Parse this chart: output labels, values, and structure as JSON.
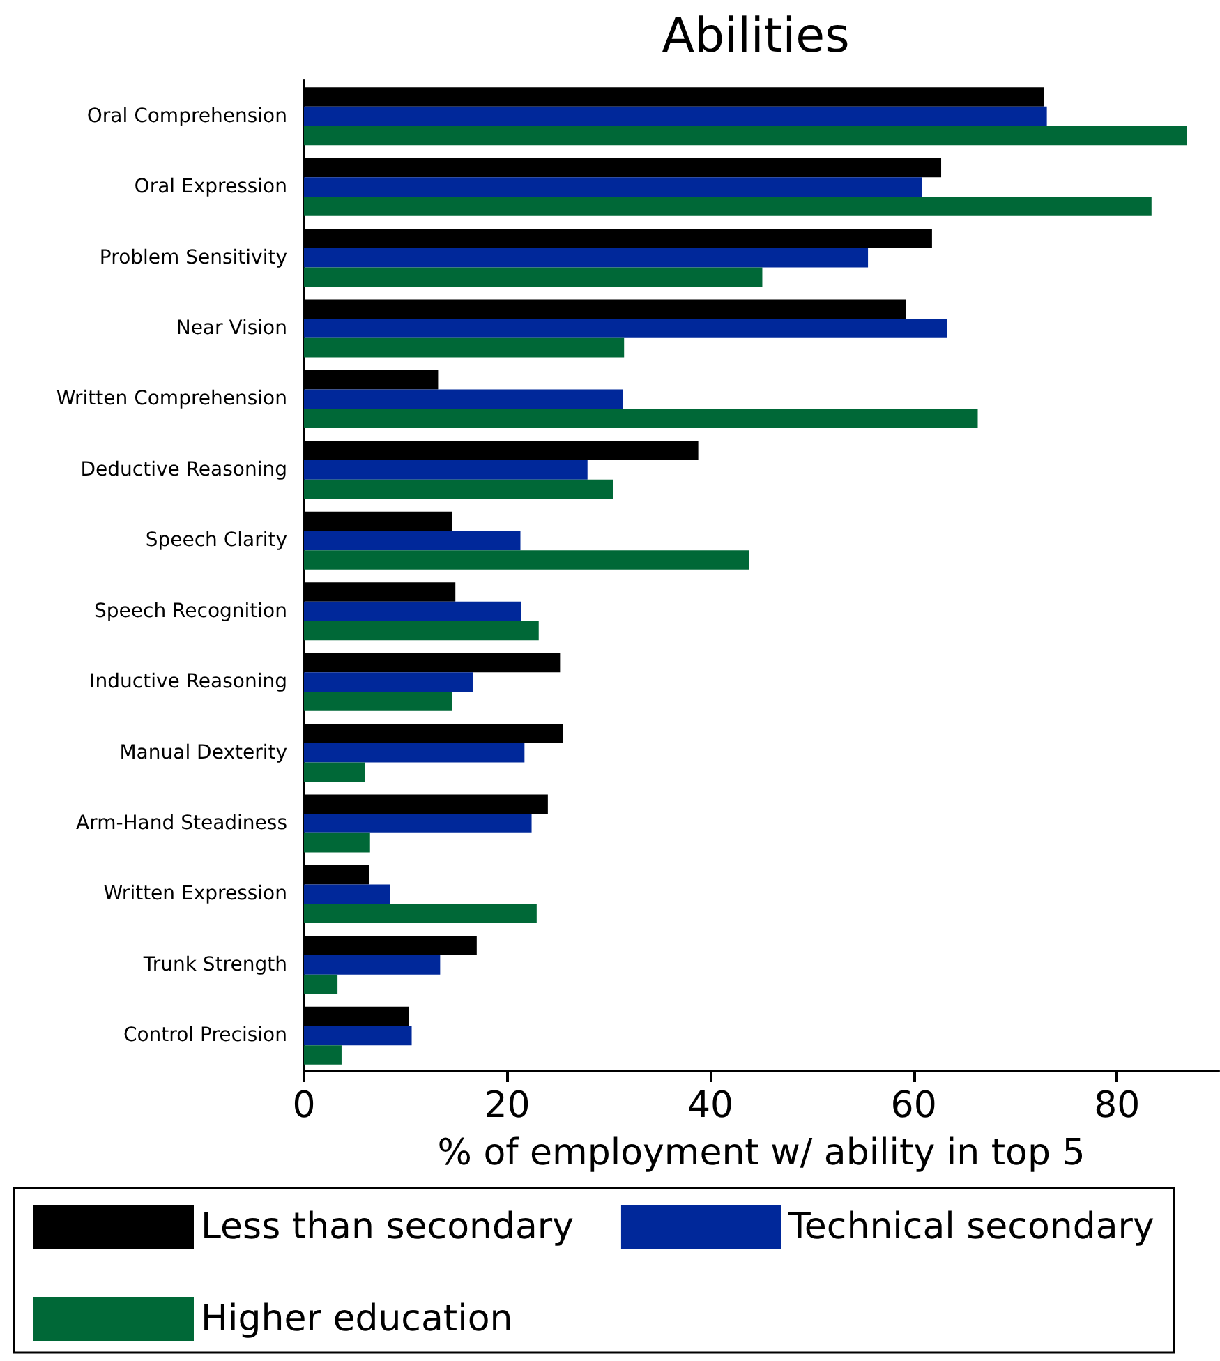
{
  "chart_data": {
    "type": "bar",
    "orientation": "horizontal",
    "title": "Abilities",
    "xlabel": "% of employment w/ ability in top 5",
    "categories": [
      "Oral Comprehension",
      "Oral Expression",
      "Problem Sensitivity",
      "Near Vision",
      "Written Comprehension",
      "Deductive Reasoning",
      "Speech Clarity",
      "Speech Recognition",
      "Inductive Reasoning",
      "Manual Dexterity",
      "Arm-Hand Steadiness",
      "Written Expression",
      "Trunk Strength",
      "Control Precision"
    ],
    "series": [
      {
        "name": "Less than secondary",
        "color": "#000000",
        "values": [
          72.8,
          62.7,
          61.8,
          59.2,
          13.2,
          38.8,
          14.6,
          14.9,
          25.2,
          25.5,
          24.0,
          6.4,
          17.0,
          10.3
        ]
      },
      {
        "name": "Technical secondary",
        "color": "#00289a",
        "values": [
          73.1,
          60.8,
          55.5,
          63.3,
          31.4,
          27.9,
          21.3,
          21.4,
          16.6,
          21.7,
          22.4,
          8.5,
          13.4,
          10.6
        ]
      },
      {
        "name": "Higher education",
        "color": "#006837",
        "values": [
          86.9,
          83.4,
          45.1,
          31.5,
          66.3,
          30.4,
          43.8,
          23.1,
          14.6,
          6.0,
          6.5,
          22.9,
          3.3,
          3.7
        ]
      }
    ],
    "xlim": [
      0,
      90
    ],
    "xticks": [
      0,
      20,
      40,
      60,
      80
    ],
    "grid": false,
    "legend": "bottom"
  }
}
